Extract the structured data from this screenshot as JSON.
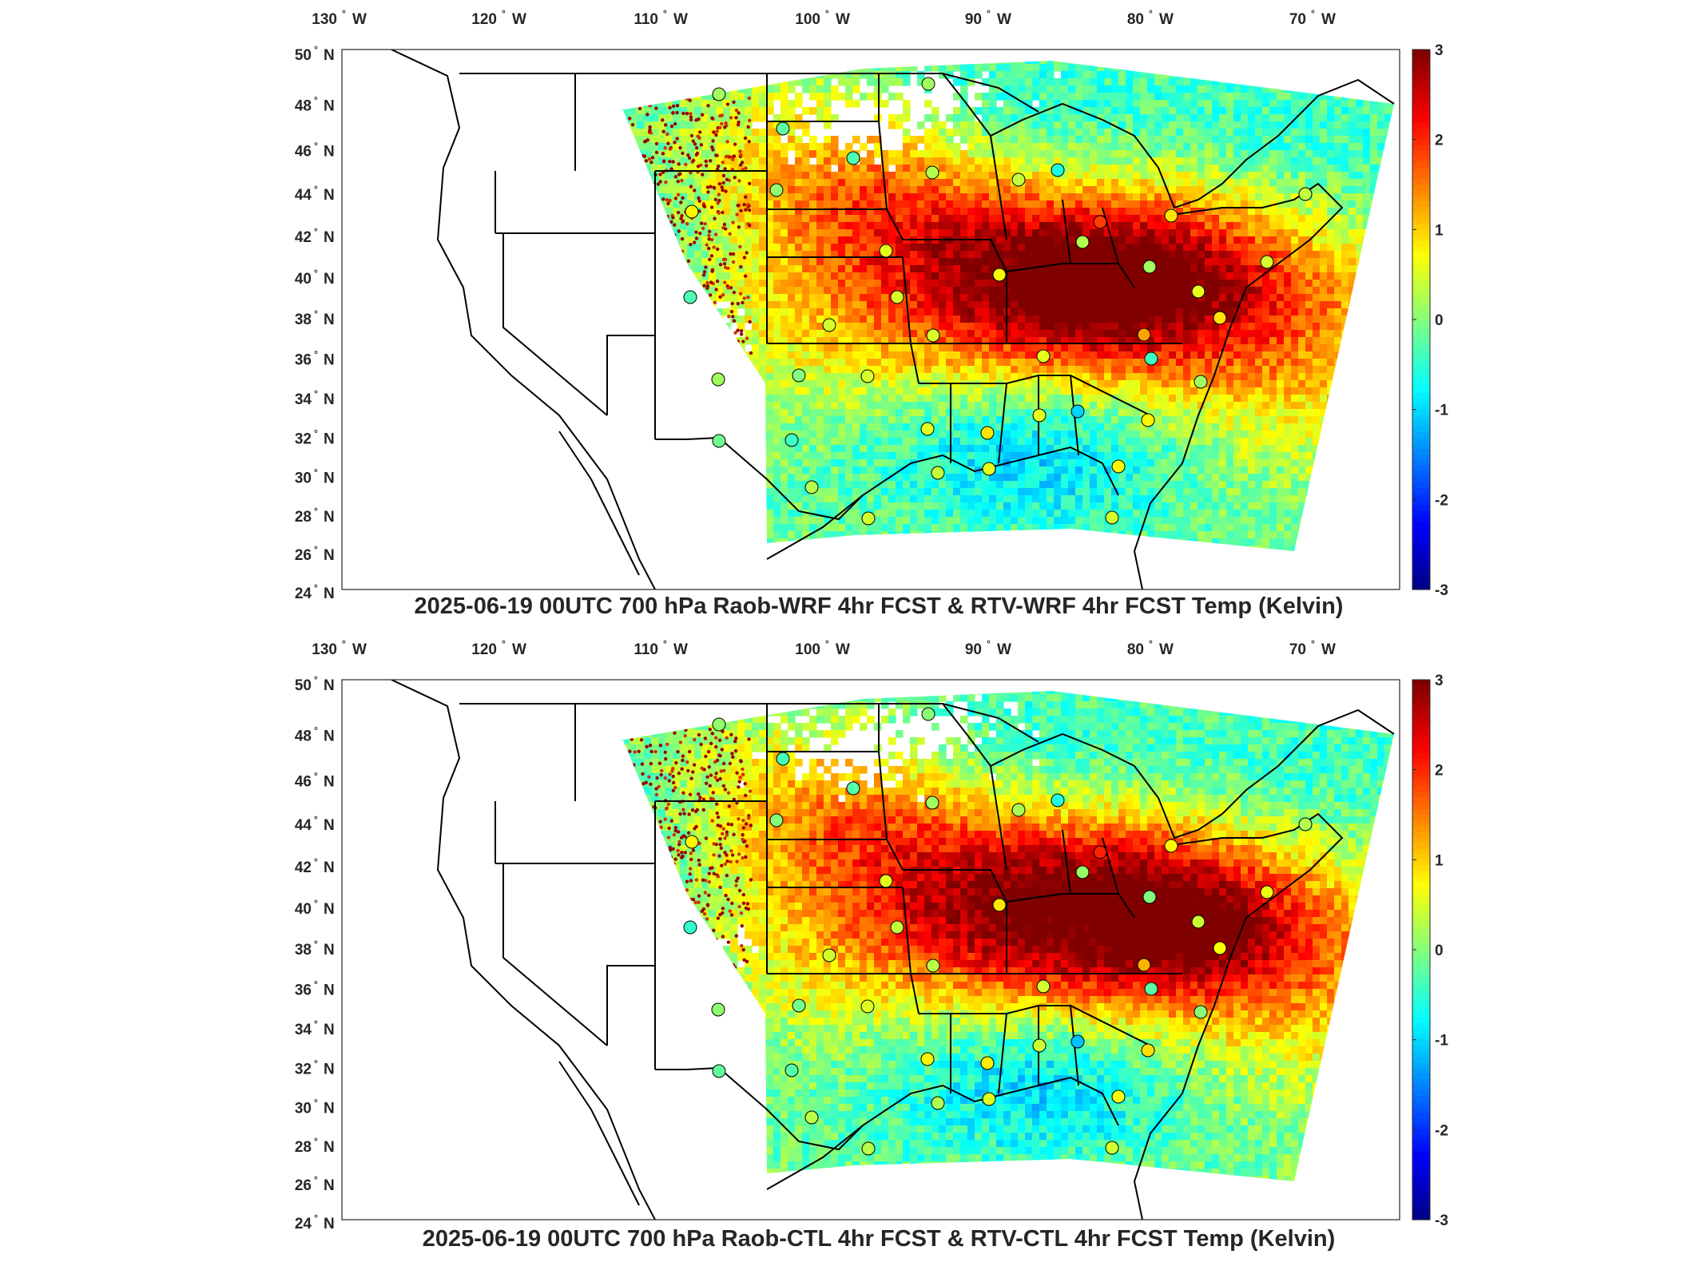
{
  "panels": [
    {
      "title": "2025-06-19 00UTC 700 hPa Raob-WRF 4hr FCST & RTV-WRF 4hr FCST Temp (Kelvin)",
      "variant": "wrf"
    },
    {
      "title": "2025-06-19 00UTC 700 hPa Raob-CTL 4hr FCST & RTV-CTL 4hr FCST Temp (Kelvin)",
      "variant": "ctl"
    }
  ],
  "map": {
    "lon_ticks": [
      {
        "value": "130",
        "hemi": "W"
      },
      {
        "value": "120",
        "hemi": "W"
      },
      {
        "value": "110",
        "hemi": "W"
      },
      {
        "value": "100",
        "hemi": "W"
      },
      {
        "value": "90",
        "hemi": "W"
      },
      {
        "value": "80",
        "hemi": "W"
      },
      {
        "value": "70",
        "hemi": "W"
      }
    ],
    "lat_ticks": [
      {
        "value": "50",
        "hemi": "N"
      },
      {
        "value": "48",
        "hemi": "N"
      },
      {
        "value": "46",
        "hemi": "N"
      },
      {
        "value": "44",
        "hemi": "N"
      },
      {
        "value": "42",
        "hemi": "N"
      },
      {
        "value": "40",
        "hemi": "N"
      },
      {
        "value": "38",
        "hemi": "N"
      },
      {
        "value": "36",
        "hemi": "N"
      },
      {
        "value": "34",
        "hemi": "N"
      },
      {
        "value": "32",
        "hemi": "N"
      },
      {
        "value": "30",
        "hemi": "N"
      },
      {
        "value": "28",
        "hemi": "N"
      },
      {
        "value": "26",
        "hemi": "N"
      },
      {
        "value": "24",
        "hemi": "N"
      }
    ],
    "colorbar": {
      "min": -3,
      "max": 3,
      "ticks": [
        "3",
        "2",
        "1",
        "0",
        "-1",
        "-2",
        "-3"
      ],
      "colormap": "jet"
    },
    "colors": {
      "border": "#000000",
      "background": "#ffffff"
    }
  }
}
